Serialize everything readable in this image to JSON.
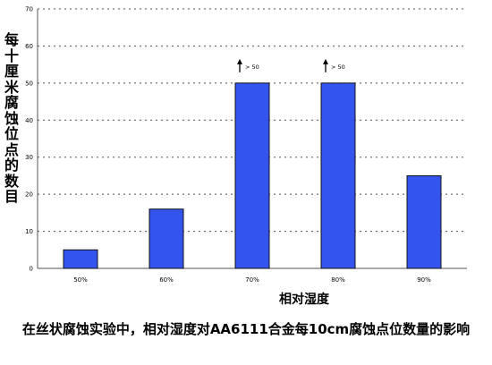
{
  "chart_data": {
    "type": "bar",
    "title": "在丝状腐蚀实验中，相对湿度对AA6111合金每10cm腐蚀点位数量的影响",
    "xlabel": "相对湿度",
    "ylabel": "每十厘米腐蚀位点的数目",
    "categories": [
      "50%",
      "60%",
      "70%",
      "80%",
      "90%"
    ],
    "values": [
      5,
      16,
      50,
      50,
      25
    ],
    "ylim": [
      0,
      70
    ],
    "yticks": [
      "0",
      "10",
      "20",
      "30",
      "40",
      "50",
      "60",
      "70"
    ],
    "annotations": [
      {
        "category": "70%",
        "text": "> 50"
      },
      {
        "category": "80%",
        "text": "> 50"
      }
    ],
    "grid": true,
    "bar_color": "#3355ee",
    "grid_color": "#555555"
  }
}
